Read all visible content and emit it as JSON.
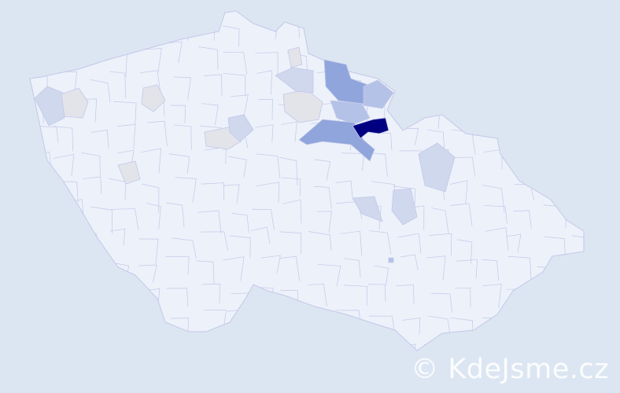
{
  "watermark": "© KdeJsme.cz",
  "colors": {
    "background": "#dce6f2",
    "base_fill": "#edf1fa",
    "border": "#c3c8e8",
    "highest": "#000080",
    "high": "#8fa5dc",
    "medium": "#b3c2e6",
    "low": "#d0d8ee",
    "neutral": "#e2e4ea"
  }
}
